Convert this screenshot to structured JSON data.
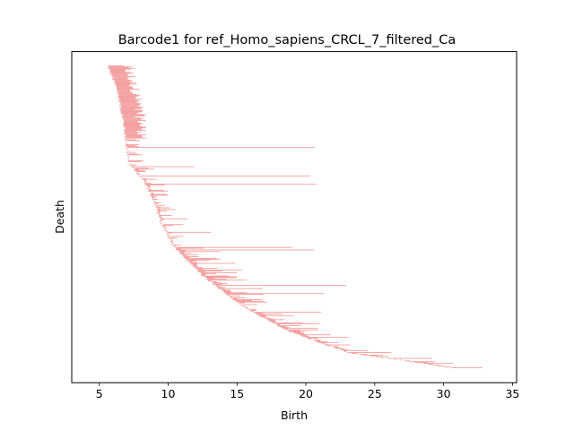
{
  "chart_data": {
    "type": "bar",
    "orientation": "horizontal-intervals",
    "title": "Barcode1 for ref_Homo_sapiens_CRCL_7_filtered_Ca",
    "xlabel": "Birth",
    "ylabel": "Death",
    "xlim": [
      3.0,
      35.3
    ],
    "xticks": [
      5,
      10,
      15,
      20,
      25,
      30,
      35
    ],
    "y_ticks_shown": false,
    "grid": false,
    "legend": "none",
    "bar_color": "#f08080",
    "axis_color": "#000000",
    "background": "#ffffff",
    "bar_count": 360,
    "key_bars": [
      {
        "birth": 5.6,
        "death": 7.6
      },
      {
        "birth": 7.6,
        "death": 9.0
      },
      {
        "birth": 7.0,
        "death": 19.4
      },
      {
        "birth": 7.0,
        "death": 20.6
      },
      {
        "birth": 7.3,
        "death": 11.9
      },
      {
        "birth": 8.0,
        "death": 20.3
      },
      {
        "birth": 8.4,
        "death": 20.8
      },
      {
        "birth": 9.4,
        "death": 11.4
      },
      {
        "birth": 9.9,
        "death": 13.1
      },
      {
        "birth": 10.5,
        "death": 19.0
      },
      {
        "birth": 10.6,
        "death": 20.6
      },
      {
        "birth": 13.5,
        "death": 22.9
      },
      {
        "birth": 14.2,
        "death": 21.3
      },
      {
        "birth": 16.2,
        "death": 21.1
      },
      {
        "birth": 20.9,
        "death": 22.4
      },
      {
        "birth": 23.0,
        "death": 26.2
      },
      {
        "birth": 30.0,
        "death": 30.5
      }
    ]
  }
}
